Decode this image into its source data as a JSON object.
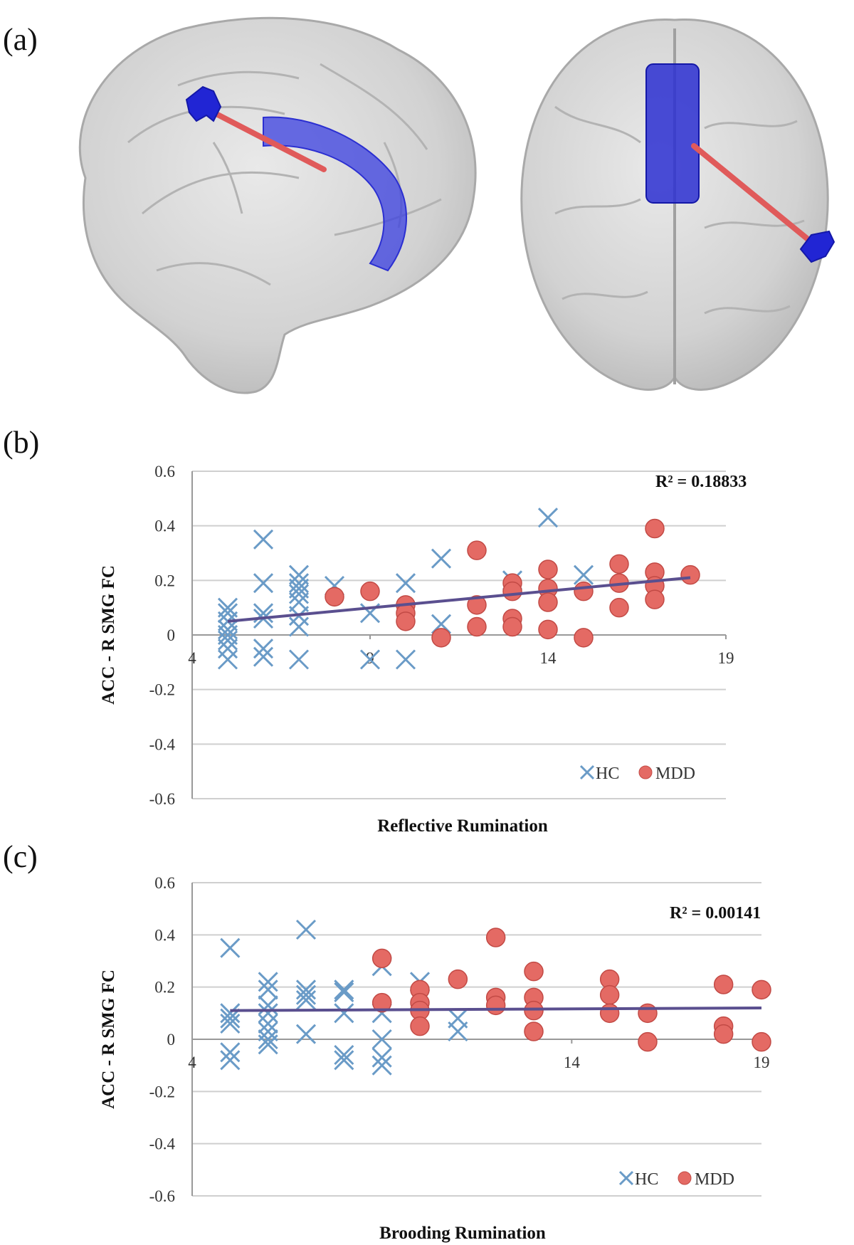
{
  "panels": {
    "a": "(a)",
    "b": "(b)",
    "c": "(c)"
  },
  "colors": {
    "hc_marker": "#6a9bc7",
    "mdd_marker": "#e46a64",
    "mdd_edge": "#c24a45",
    "trendline": "#5a4f8f",
    "gridline": "#cfcfcf",
    "roi_blue": "#2b2fd1",
    "connection_red": "#d94a4a",
    "brain_gray": "#c8c8c8"
  },
  "chart_data": [
    {
      "type": "scatter",
      "panel": "b",
      "xlabel": "Reflective Rumination",
      "ylabel": "ACC - R SMG FC",
      "annotation": "R² = 0.18833",
      "xlim": [
        4,
        19
      ],
      "ylim": [
        -0.6,
        0.6
      ],
      "xticks": [
        "4",
        "9",
        "14",
        "19"
      ],
      "yticks": [
        "0.6",
        "0.4",
        "0.2",
        "0",
        "-0.2",
        "-0.4",
        "-0.6"
      ],
      "grid": "horizontal",
      "legend_position": "bottom-right",
      "trendline": {
        "x": [
          5,
          18
        ],
        "y": [
          0.05,
          0.21
        ]
      },
      "series": [
        {
          "name": "HC",
          "marker": "x",
          "points": [
            [
              5,
              0.1
            ],
            [
              5,
              0.08
            ],
            [
              5,
              0.05
            ],
            [
              5,
              0.02
            ],
            [
              5,
              0.0
            ],
            [
              5,
              -0.02
            ],
            [
              5,
              -0.05
            ],
            [
              5,
              -0.09
            ],
            [
              6,
              0.35
            ],
            [
              6,
              0.19
            ],
            [
              6,
              0.08
            ],
            [
              6,
              0.06
            ],
            [
              6,
              -0.05
            ],
            [
              6,
              -0.08
            ],
            [
              7,
              0.22
            ],
            [
              7,
              0.19
            ],
            [
              7,
              0.17
            ],
            [
              7,
              0.15
            ],
            [
              7,
              0.12
            ],
            [
              7,
              0.07
            ],
            [
              7,
              0.03
            ],
            [
              7,
              -0.09
            ],
            [
              8,
              0.18
            ],
            [
              9,
              0.08
            ],
            [
              9,
              -0.09
            ],
            [
              10,
              0.19
            ],
            [
              10,
              -0.09
            ],
            [
              11,
              0.28
            ],
            [
              11,
              0.04
            ],
            [
              13,
              0.2
            ],
            [
              14,
              0.43
            ],
            [
              15,
              0.22
            ]
          ]
        },
        {
          "name": "MDD",
          "marker": "circle",
          "points": [
            [
              8,
              0.14
            ],
            [
              9,
              0.16
            ],
            [
              10,
              0.11
            ],
            [
              10,
              0.08
            ],
            [
              10,
              0.05
            ],
            [
              11,
              -0.01
            ],
            [
              12,
              0.31
            ],
            [
              12,
              0.11
            ],
            [
              12,
              0.03
            ],
            [
              13,
              0.19
            ],
            [
              13,
              0.16
            ],
            [
              13,
              0.06
            ],
            [
              13,
              0.03
            ],
            [
              14,
              0.24
            ],
            [
              14,
              0.17
            ],
            [
              14,
              0.12
            ],
            [
              14,
              0.02
            ],
            [
              15,
              0.16
            ],
            [
              15,
              -0.01
            ],
            [
              16,
              0.26
            ],
            [
              16,
              0.19
            ],
            [
              16,
              0.1
            ],
            [
              17,
              0.39
            ],
            [
              17,
              0.23
            ],
            [
              17,
              0.18
            ],
            [
              17,
              0.13
            ],
            [
              18,
              0.22
            ]
          ]
        }
      ]
    },
    {
      "type": "scatter",
      "panel": "c",
      "xlabel": "Brooding Rumination",
      "ylabel": "ACC - R SMG FC",
      "annotation": "R² = 0.00141",
      "xlim": [
        4,
        19
      ],
      "ylim": [
        -0.6,
        0.6
      ],
      "xticks": [
        "4",
        "14",
        "19"
      ],
      "yticks": [
        "0.6",
        "0.4",
        "0.2",
        "0",
        "-0.2",
        "-0.4",
        "-0.6"
      ],
      "grid": "horizontal",
      "legend_position": "bottom-right",
      "trendline": {
        "x": [
          5,
          19
        ],
        "y": [
          0.11,
          0.12
        ]
      },
      "series": [
        {
          "name": "HC",
          "marker": "x",
          "points": [
            [
              5,
              0.35
            ],
            [
              5,
              0.1
            ],
            [
              5,
              0.08
            ],
            [
              5,
              0.06
            ],
            [
              5,
              -0.05
            ],
            [
              5,
              -0.08
            ],
            [
              6,
              0.22
            ],
            [
              6,
              0.19
            ],
            [
              6,
              0.13
            ],
            [
              6,
              0.1
            ],
            [
              6,
              0.06
            ],
            [
              6,
              0.03
            ],
            [
              6,
              0.0
            ],
            [
              6,
              -0.02
            ],
            [
              7,
              0.42
            ],
            [
              7,
              0.19
            ],
            [
              7,
              0.17
            ],
            [
              7,
              0.15
            ],
            [
              7,
              0.02
            ],
            [
              8,
              0.19
            ],
            [
              8,
              0.18
            ],
            [
              8,
              0.1
            ],
            [
              8,
              -0.06
            ],
            [
              8,
              -0.08
            ],
            [
              9,
              0.28
            ],
            [
              9,
              0.1
            ],
            [
              9,
              0.0
            ],
            [
              9,
              -0.07
            ],
            [
              9,
              -0.1
            ],
            [
              10,
              0.22
            ],
            [
              11,
              0.08
            ],
            [
              11,
              0.03
            ]
          ]
        },
        {
          "name": "MDD",
          "marker": "circle",
          "points": [
            [
              9,
              0.31
            ],
            [
              9,
              0.14
            ],
            [
              10,
              0.19
            ],
            [
              10,
              0.14
            ],
            [
              10,
              0.11
            ],
            [
              10,
              0.05
            ],
            [
              11,
              0.23
            ],
            [
              12,
              0.39
            ],
            [
              12,
              0.16
            ],
            [
              12,
              0.13
            ],
            [
              13,
              0.26
            ],
            [
              13,
              0.16
            ],
            [
              13,
              0.11
            ],
            [
              13,
              0.03
            ],
            [
              15,
              0.23
            ],
            [
              15,
              0.17
            ],
            [
              15,
              0.1
            ],
            [
              16,
              0.1
            ],
            [
              16,
              -0.01
            ],
            [
              18,
              0.21
            ],
            [
              18,
              0.05
            ],
            [
              18,
              0.02
            ],
            [
              19,
              0.19
            ],
            [
              19,
              -0.01
            ]
          ]
        }
      ]
    }
  ]
}
